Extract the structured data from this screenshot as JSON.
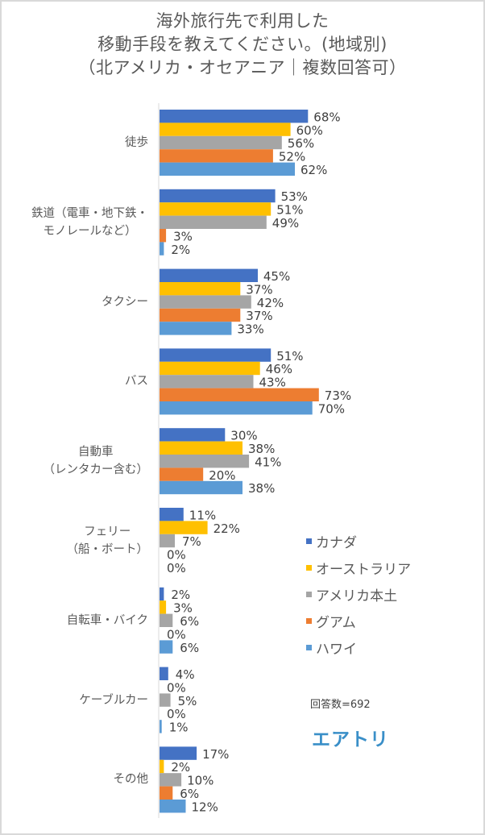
{
  "chart_data": {
    "type": "bar",
    "orientation": "horizontal",
    "title": [
      "海外旅行先で利用した",
      "移動手段を教えてください。(地域別)",
      "（北アメリカ・オセアニア｜複数回答可）"
    ],
    "xlabel": "",
    "ylabel": "",
    "xlim": [
      0,
      100
    ],
    "grid": false,
    "legend_position": "right",
    "value_suffix": "%",
    "categories": [
      [
        "徒歩"
      ],
      [
        "鉄道（電車・地下鉄・",
        "モノレールなど）"
      ],
      [
        "タクシー"
      ],
      [
        "バス"
      ],
      [
        "自動車",
        "（レンタカー含む）"
      ],
      [
        "フェリー",
        "（船・ボート）"
      ],
      [
        "自転車・バイク"
      ],
      [
        "ケーブルカー"
      ],
      [
        "その他"
      ]
    ],
    "series": [
      {
        "name": "カナダ",
        "color": "#4472c4",
        "values": [
          68,
          53,
          45,
          51,
          30,
          11,
          2,
          4,
          17
        ]
      },
      {
        "name": "オーストラリア",
        "color": "#ffc000",
        "values": [
          60,
          51,
          37,
          46,
          38,
          22,
          3,
          0,
          2
        ]
      },
      {
        "name": "アメリカ本土",
        "color": "#a5a5a5",
        "values": [
          56,
          49,
          42,
          43,
          41,
          7,
          6,
          5,
          10
        ]
      },
      {
        "name": "グアム",
        "color": "#ed7d31",
        "values": [
          52,
          3,
          37,
          73,
          20,
          0,
          0,
          0,
          6
        ]
      },
      {
        "name": "ハワイ",
        "color": "#5b9bd5",
        "values": [
          62,
          2,
          33,
          70,
          38,
          0,
          6,
          1,
          12
        ]
      }
    ]
  },
  "note": "回答数=692",
  "brand": "エアトリ"
}
